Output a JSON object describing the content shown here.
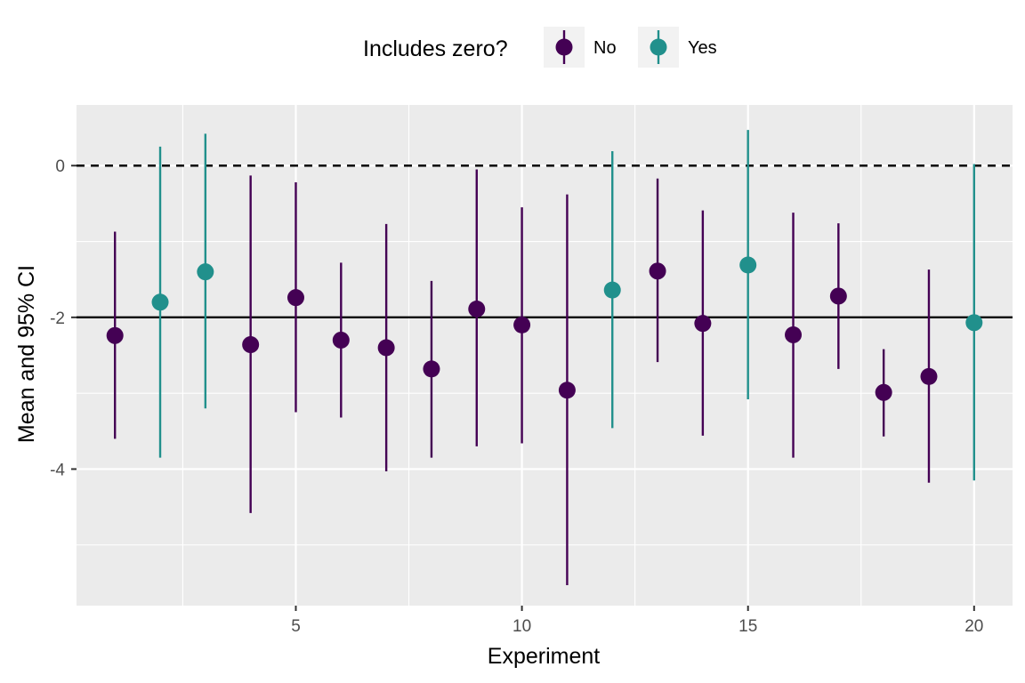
{
  "chart_data": {
    "type": "scatter",
    "subtype": "point-range",
    "title": "",
    "xlabel": "Experiment",
    "ylabel": "Mean and 95% CI",
    "xlim": [
      0.15,
      20.85
    ],
    "ylim": [
      -5.8,
      0.8
    ],
    "x_ticks": [
      5,
      10,
      15,
      20
    ],
    "y_ticks": [
      0,
      -2,
      -4
    ],
    "y_tick_labels": [
      "0",
      "-2",
      "-4"
    ],
    "grid": true,
    "reference_lines": [
      {
        "y": 0,
        "style": "dashed",
        "color": "#000000"
      },
      {
        "y": -2,
        "style": "solid",
        "color": "#000000"
      }
    ],
    "legend": {
      "title": "Includes zero?",
      "position": "top",
      "entries": [
        {
          "label": "No",
          "color": "#440154"
        },
        {
          "label": "Yes",
          "color": "#21908C"
        }
      ]
    },
    "points": [
      {
        "x": 1,
        "mean": -2.24,
        "lower": -3.6,
        "upper": -0.87,
        "includes_zero": "No"
      },
      {
        "x": 2,
        "mean": -1.8,
        "lower": -3.85,
        "upper": 0.25,
        "includes_zero": "Yes"
      },
      {
        "x": 3,
        "mean": -1.4,
        "lower": -3.2,
        "upper": 0.42,
        "includes_zero": "Yes"
      },
      {
        "x": 4,
        "mean": -2.36,
        "lower": -4.58,
        "upper": -0.13,
        "includes_zero": "No"
      },
      {
        "x": 5,
        "mean": -1.74,
        "lower": -3.25,
        "upper": -0.22,
        "includes_zero": "No"
      },
      {
        "x": 6,
        "mean": -2.3,
        "lower": -3.32,
        "upper": -1.28,
        "includes_zero": "No"
      },
      {
        "x": 7,
        "mean": -2.4,
        "lower": -4.03,
        "upper": -0.77,
        "includes_zero": "No"
      },
      {
        "x": 8,
        "mean": -2.68,
        "lower": -3.85,
        "upper": -1.52,
        "includes_zero": "No"
      },
      {
        "x": 9,
        "mean": -1.89,
        "lower": -3.7,
        "upper": -0.05,
        "includes_zero": "No"
      },
      {
        "x": 10,
        "mean": -2.1,
        "lower": -3.66,
        "upper": -0.55,
        "includes_zero": "No"
      },
      {
        "x": 11,
        "mean": -2.96,
        "lower": -5.53,
        "upper": -0.38,
        "includes_zero": "No"
      },
      {
        "x": 12,
        "mean": -1.64,
        "lower": -3.46,
        "upper": 0.19,
        "includes_zero": "Yes"
      },
      {
        "x": 13,
        "mean": -1.39,
        "lower": -2.59,
        "upper": -0.17,
        "includes_zero": "No"
      },
      {
        "x": 14,
        "mean": -2.08,
        "lower": -3.56,
        "upper": -0.59,
        "includes_zero": "No"
      },
      {
        "x": 15,
        "mean": -1.31,
        "lower": -3.08,
        "upper": 0.47,
        "includes_zero": "Yes"
      },
      {
        "x": 16,
        "mean": -2.23,
        "lower": -3.85,
        "upper": -0.62,
        "includes_zero": "No"
      },
      {
        "x": 17,
        "mean": -1.72,
        "lower": -2.68,
        "upper": -0.76,
        "includes_zero": "No"
      },
      {
        "x": 18,
        "mean": -2.99,
        "lower": -3.57,
        "upper": -2.42,
        "includes_zero": "No"
      },
      {
        "x": 19,
        "mean": -2.78,
        "lower": -4.18,
        "upper": -1.37,
        "includes_zero": "No"
      },
      {
        "x": 20,
        "mean": -2.07,
        "lower": -4.15,
        "upper": 0.02,
        "includes_zero": "Yes"
      }
    ]
  },
  "colors": {
    "panel_background": "#EBEBEB",
    "grid": "#FFFFFF",
    "no": "#440154",
    "yes": "#21908C"
  }
}
